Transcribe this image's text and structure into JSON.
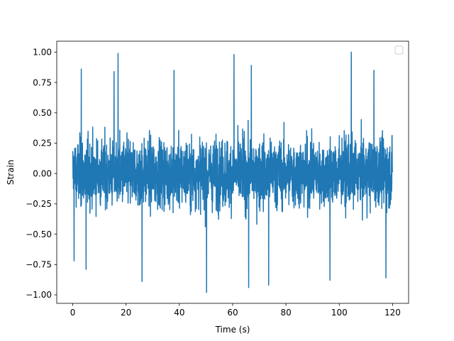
{
  "chart_data": {
    "type": "line",
    "title": "",
    "xlabel": "Time (s)",
    "ylabel": "Strain",
    "xlim": [
      -6.0,
      126.0
    ],
    "ylim": [
      -1.07,
      1.09
    ],
    "x_ticks": [
      0,
      20,
      40,
      60,
      80,
      100,
      120
    ],
    "x_tick_labels": [
      "0",
      "20",
      "40",
      "60",
      "80",
      "100",
      "120"
    ],
    "y_ticks": [
      -1.0,
      -0.75,
      -0.5,
      -0.25,
      0.0,
      0.25,
      0.5,
      0.75,
      1.0
    ],
    "y_tick_labels": [
      "−1.00",
      "−0.75",
      "−0.50",
      "−0.25",
      "0.00",
      "0.25",
      "0.50",
      "0.75",
      "1.00"
    ],
    "grid": false,
    "legend": {
      "placement": "top-right",
      "entries": []
    },
    "series": [
      {
        "color": "#1f77b4",
        "x_range": [
          0,
          120
        ],
        "typical_band": [
          -0.45,
          0.45
        ],
        "peaks": [
          {
            "x": 17.0,
            "y": 0.99
          },
          {
            "x": 104.5,
            "y": 1.0
          },
          {
            "x": 60.5,
            "y": 0.98
          },
          {
            "x": 3.2,
            "y": 0.86
          },
          {
            "x": 15.5,
            "y": 0.84
          },
          {
            "x": 38.0,
            "y": 0.85
          },
          {
            "x": 67.0,
            "y": 0.89
          },
          {
            "x": 113.0,
            "y": 0.85
          },
          {
            "x": 50.2,
            "y": -0.98
          },
          {
            "x": 66.0,
            "y": -0.94
          },
          {
            "x": 26.0,
            "y": -0.89
          },
          {
            "x": 96.5,
            "y": -0.88
          },
          {
            "x": 73.5,
            "y": -0.92
          },
          {
            "x": 117.5,
            "y": -0.86
          },
          {
            "x": 0.5,
            "y": -0.72
          },
          {
            "x": 5.0,
            "y": -0.79
          }
        ]
      }
    ]
  }
}
